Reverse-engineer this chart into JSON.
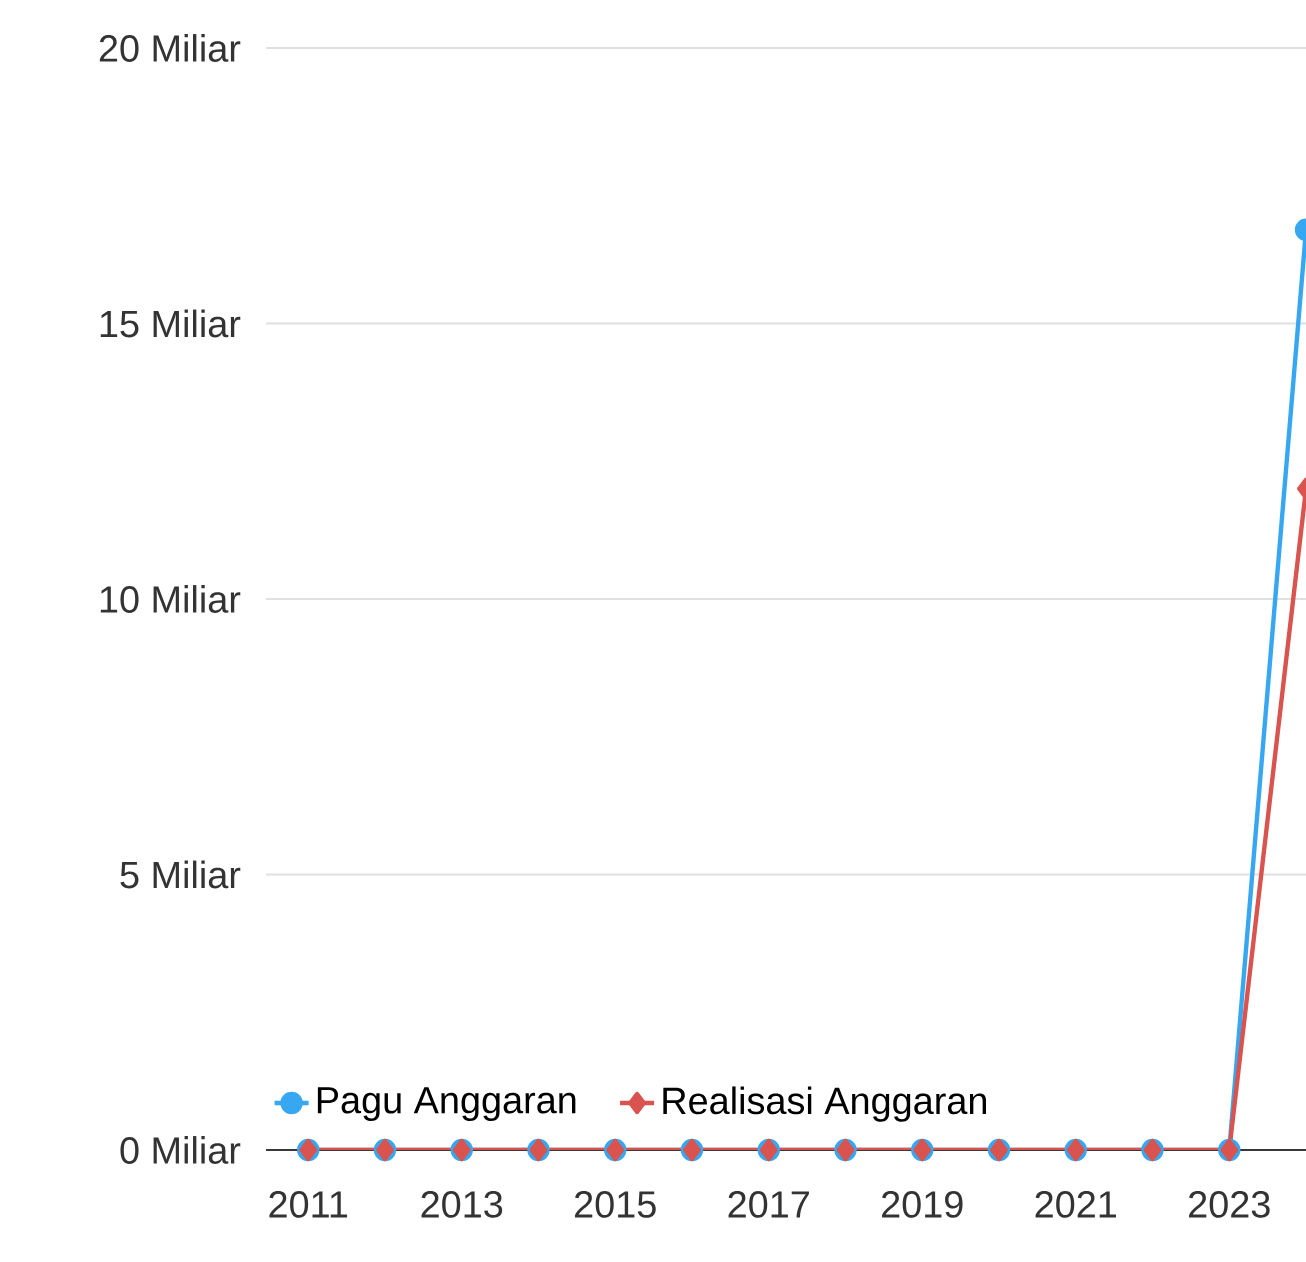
{
  "chart_data": {
    "type": "line",
    "x": [
      2011,
      2012,
      2013,
      2014,
      2015,
      2016,
      2017,
      2018,
      2019,
      2020,
      2021,
      2022,
      2023,
      2024
    ],
    "series": [
      {
        "name": "Pagu Anggaran",
        "color": "#36a7f0",
        "marker": "circle",
        "values": [
          0,
          0,
          0,
          0,
          0,
          0,
          0,
          0,
          0,
          0,
          0,
          0,
          0,
          16.7
        ]
      },
      {
        "name": "Realisasi Anggaran",
        "color": "#d9534f",
        "marker": "diamond",
        "values": [
          0,
          0,
          0,
          0,
          0,
          0,
          0,
          0,
          0,
          0,
          0,
          0,
          0,
          12.0
        ]
      }
    ],
    "xlim": [
      2010.45,
      2024
    ],
    "xticks": [
      2011,
      2013,
      2015,
      2017,
      2019,
      2021,
      2023
    ],
    "ylim": [
      0,
      20
    ],
    "yticks": [
      {
        "value": 0,
        "label": "0 Miliar"
      },
      {
        "value": 5,
        "label": "5 Miliar"
      },
      {
        "value": 10,
        "label": "10 Miliar"
      },
      {
        "value": 15,
        "label": "15 Miliar"
      },
      {
        "value": 20,
        "label": "20 Miliar"
      }
    ],
    "grid": "y",
    "legend": "bottom left",
    "line_style": "solid"
  }
}
